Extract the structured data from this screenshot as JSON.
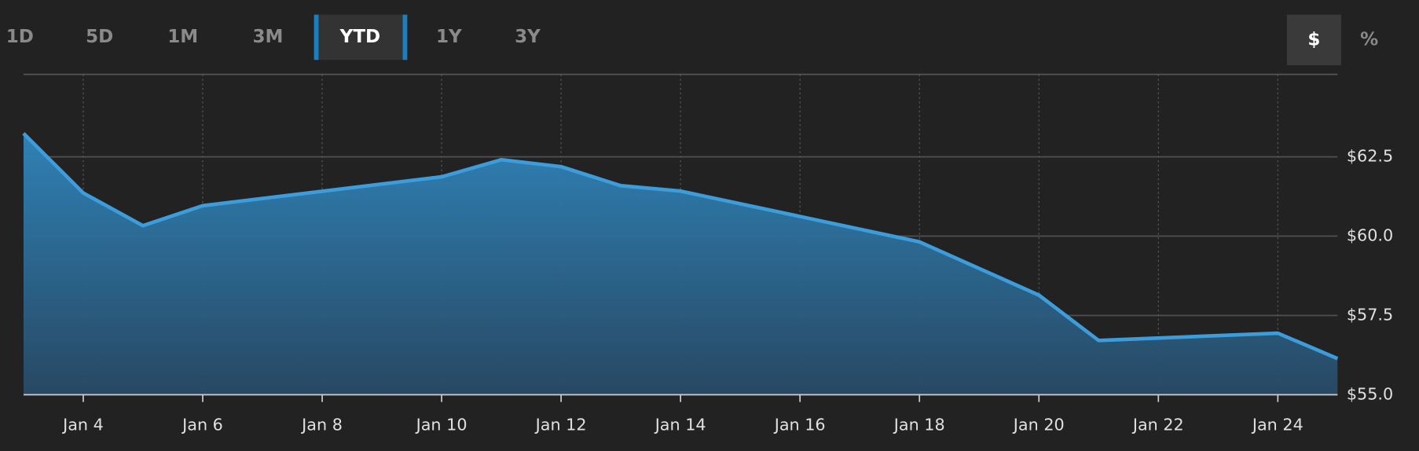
{
  "controls": {
    "ranges": [
      "1D",
      "5D",
      "1M",
      "3M",
      "YTD",
      "1Y",
      "3Y"
    ],
    "active": "YTD",
    "modes": [
      "$",
      "%"
    ],
    "active_mode": "$"
  },
  "chart_data": {
    "type": "area",
    "x": [
      3,
      4,
      5,
      6,
      10,
      11,
      12,
      13,
      14,
      18,
      20,
      21,
      24,
      25
    ],
    "values": [
      63.24,
      61.36,
      60.33,
      60.96,
      61.87,
      62.41,
      62.19,
      61.59,
      61.42,
      59.82,
      58.14,
      56.71,
      56.94,
      56.14
    ],
    "color": "#3d9ddb",
    "xlim": [
      3,
      25
    ],
    "xticks": [
      {
        "value": 4,
        "label": "Jan 4"
      },
      {
        "value": 6,
        "label": "Jan 6"
      },
      {
        "value": 8,
        "label": "Jan 8"
      },
      {
        "value": 10,
        "label": "Jan 10"
      },
      {
        "value": 12,
        "label": "Jan 12"
      },
      {
        "value": 14,
        "label": "Jan 14"
      },
      {
        "value": 16,
        "label": "Jan 16"
      },
      {
        "value": 18,
        "label": "Jan 18"
      },
      {
        "value": 20,
        "label": "Jan 20"
      },
      {
        "value": 22,
        "label": "Jan 22"
      },
      {
        "value": 24,
        "label": "Jan 24"
      }
    ],
    "ylim": [
      55,
      65.1
    ],
    "yticks": [
      {
        "value": 55,
        "label": "$55.0"
      },
      {
        "value": 57.5,
        "label": "$57.5"
      },
      {
        "value": 60,
        "label": "$60.0"
      },
      {
        "value": 62.5,
        "label": "$62.5"
      }
    ],
    "grid": true
  }
}
